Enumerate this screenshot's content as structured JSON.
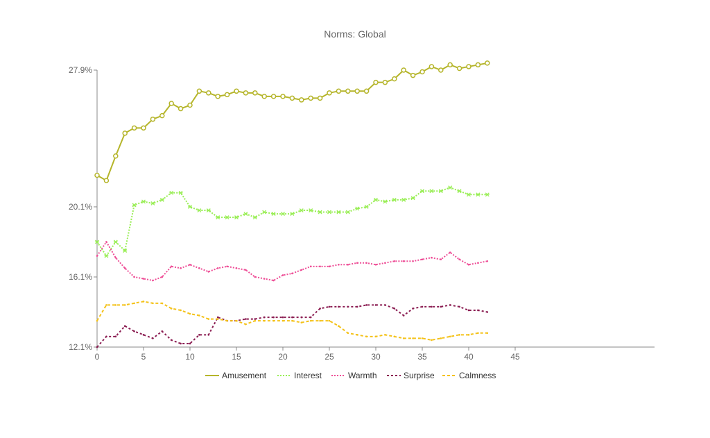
{
  "chart_data": {
    "type": "line",
    "title": "Norms: Global",
    "xlabel": "",
    "ylabel": "",
    "xlim": [
      0,
      60
    ],
    "ylim": [
      12.1,
      27.9
    ],
    "xticks": [
      0,
      5,
      10,
      15,
      20,
      25,
      30,
      35,
      40,
      45
    ],
    "yticks": [
      {
        "value": 12.1,
        "label": "12.1%"
      },
      {
        "value": 16.1,
        "label": "16.1%"
      },
      {
        "value": 20.1,
        "label": "20.1%"
      },
      {
        "value": 27.9,
        "label": "27.9%"
      }
    ],
    "grid": false,
    "legend": "bottom",
    "x": [
      0,
      1,
      2,
      3,
      4,
      5,
      6,
      7,
      8,
      9,
      10,
      11,
      12,
      13,
      14,
      15,
      16,
      17,
      18,
      19,
      20,
      21,
      22,
      23,
      24,
      25,
      26,
      27,
      28,
      29,
      30,
      31,
      32,
      33,
      34,
      35,
      36,
      37,
      38,
      39,
      40,
      41,
      42
    ],
    "series": [
      {
        "name": "Amusement",
        "color": "#b5b52a",
        "dash": "",
        "marker": "circle",
        "values": [
          21.9,
          21.6,
          23.0,
          24.3,
          24.6,
          24.6,
          25.1,
          25.3,
          26.0,
          25.7,
          25.9,
          26.7,
          26.6,
          26.4,
          26.5,
          26.7,
          26.6,
          26.6,
          26.4,
          26.4,
          26.4,
          26.3,
          26.2,
          26.3,
          26.3,
          26.6,
          26.7,
          26.7,
          26.7,
          26.7,
          27.2,
          27.2,
          27.4,
          27.9,
          27.6,
          27.8,
          28.1,
          27.9,
          28.2,
          28.0,
          28.1,
          28.2,
          28.3
        ]
      },
      {
        "name": "Interest",
        "color": "#99ee55",
        "dash": "2,2",
        "marker": "x",
        "values": [
          18.1,
          17.3,
          18.1,
          17.6,
          20.2,
          20.4,
          20.3,
          20.5,
          20.9,
          20.9,
          20.1,
          19.9,
          19.9,
          19.5,
          19.5,
          19.5,
          19.7,
          19.5,
          19.8,
          19.7,
          19.7,
          19.7,
          19.9,
          19.9,
          19.8,
          19.8,
          19.8,
          19.8,
          20.0,
          20.1,
          20.5,
          20.4,
          20.5,
          20.5,
          20.6,
          21.0,
          21.0,
          21.0,
          21.2,
          21.0,
          20.8,
          20.8,
          20.8
        ]
      },
      {
        "name": "Warmth",
        "color": "#ee4f97",
        "dash": "2,2",
        "marker": "",
        "values": [
          17.3,
          18.1,
          17.2,
          16.6,
          16.1,
          16.0,
          15.9,
          16.1,
          16.7,
          16.6,
          16.8,
          16.6,
          16.4,
          16.6,
          16.7,
          16.6,
          16.5,
          16.1,
          16.0,
          15.9,
          16.2,
          16.3,
          16.5,
          16.7,
          16.7,
          16.7,
          16.8,
          16.8,
          16.9,
          16.9,
          16.8,
          16.9,
          17.0,
          17.0,
          17.0,
          17.1,
          17.2,
          17.1,
          17.5,
          17.1,
          16.8,
          16.9,
          17.0
        ]
      },
      {
        "name": "Surprise",
        "color": "#8b1d52",
        "dash": "3,3",
        "marker": "",
        "values": [
          12.1,
          12.7,
          12.7,
          13.3,
          13.0,
          12.8,
          12.6,
          13.0,
          12.5,
          12.3,
          12.3,
          12.8,
          12.8,
          13.8,
          13.6,
          13.6,
          13.7,
          13.7,
          13.8,
          13.8,
          13.8,
          13.8,
          13.8,
          13.8,
          14.3,
          14.4,
          14.4,
          14.4,
          14.4,
          14.5,
          14.5,
          14.5,
          14.3,
          13.9,
          14.3,
          14.4,
          14.4,
          14.4,
          14.5,
          14.4,
          14.2,
          14.2,
          14.1
        ]
      },
      {
        "name": "Calmness",
        "color": "#f4c21a",
        "dash": "4,3",
        "marker": "",
        "values": [
          13.6,
          14.5,
          14.5,
          14.5,
          14.6,
          14.7,
          14.6,
          14.6,
          14.3,
          14.2,
          14.0,
          13.9,
          13.7,
          13.7,
          13.6,
          13.6,
          13.4,
          13.6,
          13.6,
          13.6,
          13.6,
          13.6,
          13.5,
          13.6,
          13.6,
          13.6,
          13.3,
          12.9,
          12.8,
          12.7,
          12.7,
          12.8,
          12.7,
          12.6,
          12.6,
          12.6,
          12.5,
          12.6,
          12.7,
          12.8,
          12.8,
          12.9,
          12.9
        ]
      }
    ]
  }
}
